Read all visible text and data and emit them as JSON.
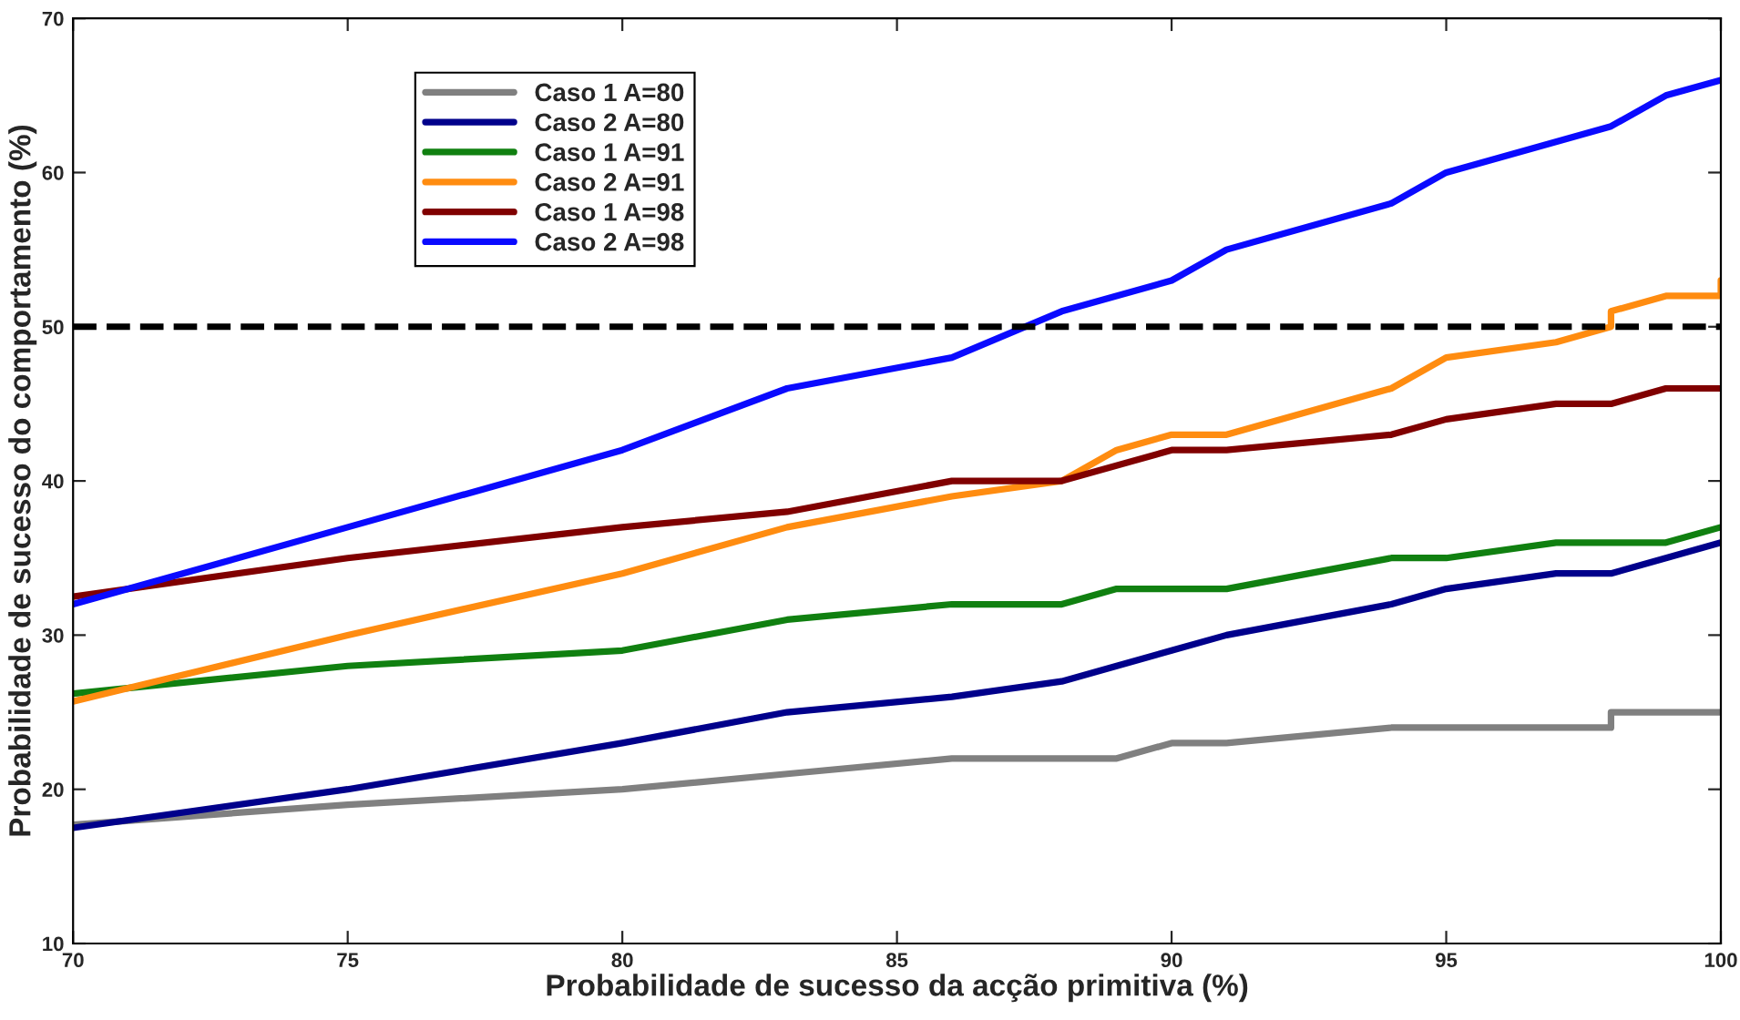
{
  "chart_data": {
    "type": "line",
    "xlabel": "Probabilidade de sucesso da acção primitiva (%)",
    "ylabel": "Probabilidade de sucesso do comportamento (%)",
    "xlim": [
      70,
      100
    ],
    "xticks": [
      70,
      75,
      80,
      85,
      90,
      95,
      100
    ],
    "ylim": [
      10,
      70
    ],
    "yticks": [
      10,
      20,
      30,
      40,
      50,
      60,
      70
    ],
    "grid": false,
    "legend": "top left",
    "marker": "none",
    "line_style": "solid",
    "ref_lines": [
      {
        "axis": "y",
        "value": 50,
        "color": "#000000",
        "line_style": "dashed"
      }
    ],
    "series": [
      {
        "name": "Caso 1 A=80",
        "color": "#808080",
        "x": [
          70,
          75,
          80,
          83,
          86,
          88,
          89,
          90,
          91,
          94,
          98,
          98,
          100
        ],
        "values": [
          17.7,
          19,
          20,
          21,
          22,
          22,
          22,
          23,
          23,
          24,
          24,
          25,
          25
        ]
      },
      {
        "name": "Caso 2 A=80",
        "color": "#00008b",
        "x": [
          70,
          75,
          80,
          83,
          86,
          88,
          89,
          90,
          91,
          94,
          95,
          97,
          98,
          99,
          100
        ],
        "values": [
          17.5,
          20,
          23,
          25,
          26,
          27,
          28,
          29,
          30,
          32,
          33,
          34,
          34,
          35,
          36
        ]
      },
      {
        "name": "Caso 1 A=91",
        "color": "#108010",
        "x": [
          70,
          75,
          80,
          83,
          86,
          88,
          89,
          91,
          94,
          95,
          97,
          99,
          100
        ],
        "values": [
          26.2,
          28,
          29,
          31,
          32,
          32,
          33,
          33,
          35,
          35,
          36,
          36,
          37
        ]
      },
      {
        "name": "Caso 2 A=91",
        "color": "#ff8c10",
        "x": [
          70,
          75,
          80,
          83,
          86,
          88,
          89,
          90,
          91,
          94,
          95,
          97,
          98,
          98,
          99,
          100,
          100
        ],
        "values": [
          25.7,
          30,
          34,
          37,
          39,
          40,
          42,
          43,
          43,
          46,
          48,
          49,
          50,
          51,
          52,
          52,
          53
        ]
      },
      {
        "name": "Caso 1 A=98",
        "color": "#800000",
        "x": [
          70,
          75,
          80,
          83,
          86,
          88,
          90,
          91,
          94,
          95,
          97,
          98,
          99,
          100
        ],
        "values": [
          32.5,
          35,
          37,
          38,
          40,
          40,
          42,
          42,
          43,
          44,
          45,
          45,
          46,
          46
        ]
      },
      {
        "name": "Caso 2 A=98",
        "color": "#0a0aff",
        "x": [
          70,
          75,
          80,
          83,
          86,
          88,
          90,
          91,
          94,
          95,
          98,
          99,
          100
        ],
        "values": [
          32,
          37,
          42,
          46,
          48,
          51,
          53,
          55,
          58,
          60,
          63,
          65,
          66
        ]
      }
    ]
  }
}
